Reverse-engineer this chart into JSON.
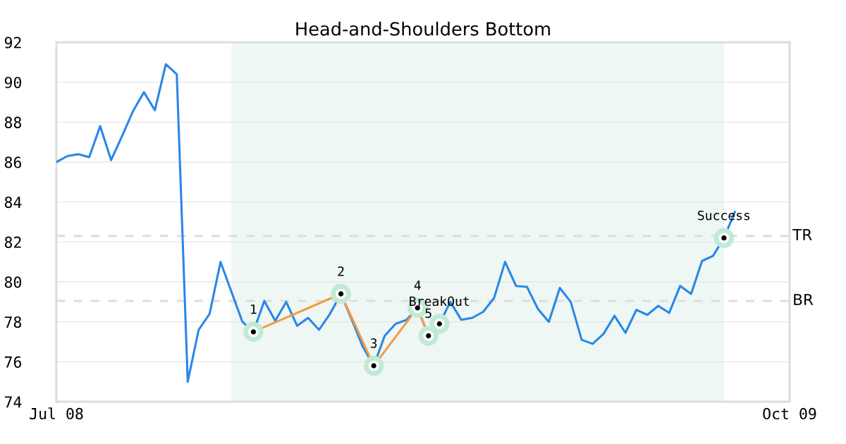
{
  "chart_data": {
    "type": "line",
    "title": "Head-and-Shoulders Bottom",
    "x": [
      "2008-07-07",
      "2008-07-14",
      "2008-07-21",
      "2008-07-28",
      "2008-08-04",
      "2008-08-11",
      "2008-08-18",
      "2008-08-25",
      "2008-09-01",
      "2008-09-08",
      "2008-09-15",
      "2008-09-22",
      "2008-09-29",
      "2008-10-06",
      "2008-10-13",
      "2008-10-20",
      "2008-10-27",
      "2008-11-03",
      "2008-11-10",
      "2008-11-17",
      "2008-11-24",
      "2008-12-01",
      "2008-12-08",
      "2008-12-15",
      "2008-12-22",
      "2008-12-29",
      "2009-01-05",
      "2009-01-12",
      "2009-01-19",
      "2009-01-26",
      "2009-02-02",
      "2009-02-09",
      "2009-02-16",
      "2009-02-23",
      "2009-03-02",
      "2009-03-09",
      "2009-03-16",
      "2009-03-23",
      "2009-03-30",
      "2009-04-06",
      "2009-04-13",
      "2009-04-20",
      "2009-04-27",
      "2009-05-04",
      "2009-05-11",
      "2009-05-18",
      "2009-05-25",
      "2009-06-01",
      "2009-06-08",
      "2009-06-15",
      "2009-06-22",
      "2009-06-29",
      "2009-07-06",
      "2009-07-13",
      "2009-07-20",
      "2009-07-27",
      "2009-08-03",
      "2009-08-10",
      "2009-08-17",
      "2009-08-24",
      "2009-08-31",
      "2009-09-07",
      "2009-09-14"
    ],
    "series": [
      {
        "color": "#2a86e8",
        "values": [
          86.0,
          86.3,
          86.4,
          86.25,
          87.8,
          86.1,
          87.3,
          88.55,
          89.5,
          88.6,
          90.9,
          90.4,
          75.0,
          77.6,
          78.4,
          81.0,
          79.5,
          78.0,
          77.5,
          79.05,
          78.05,
          79.0,
          77.8,
          78.2,
          77.6,
          78.4,
          79.4,
          78.1,
          76.75,
          75.8,
          77.3,
          77.9,
          78.1,
          78.7,
          77.3,
          77.9,
          79.0,
          78.1,
          78.2,
          78.5,
          79.2,
          81.0,
          79.8,
          79.75,
          78.65,
          78.0,
          79.7,
          79.0,
          77.1,
          76.9,
          77.4,
          78.3,
          77.45,
          78.6,
          78.35,
          78.8,
          78.45,
          79.8,
          79.4,
          81.05,
          81.3,
          82.2,
          83.5
        ]
      },
      {
        "type": "line",
        "color": "#f59b42",
        "marker": "circle",
        "x": [
          "2008-11-10",
          "2009-01-05",
          "2009-01-26",
          "2009-02-23",
          "2009-03-02"
        ],
        "values": [
          77.5,
          79.4,
          75.8,
          78.7,
          77.3
        ]
      },
      {
        "type": "scatter",
        "color": "#c0ead5",
        "marker": "circle",
        "x": [
          "2009-03-09",
          "2009-09-07"
        ],
        "values": [
          77.9,
          82.2
        ]
      }
    ],
    "xlim": [
      "2008-07-07",
      "2009-10-19"
    ],
    "xticks": [
      {
        "value": "2008-07-07",
        "label": "Jul 08"
      },
      {
        "value": "2009-10-19",
        "label": "Oct 09"
      }
    ],
    "ylim": [
      74,
      92
    ],
    "yticks": [
      74,
      76,
      78,
      80,
      82,
      84,
      86,
      88,
      90,
      92
    ],
    "grid": "y",
    "ref_lines": [
      {
        "axis": "y",
        "value": 82.3,
        "label": "TR",
        "color": "#dddddd",
        "line_style": "dashed"
      },
      {
        "axis": "y",
        "value": 79.05,
        "label": "BR",
        "color": "#dddddd",
        "line_style": "dashed"
      }
    ],
    "bands": [
      {
        "axis": "x",
        "from": "2008-10-27",
        "to": "2009-09-07",
        "color": "#eef7f3"
      }
    ],
    "annotations": [
      {
        "text": "1",
        "x": "2008-11-10",
        "y": 77.5
      },
      {
        "text": "2",
        "x": "2009-01-05",
        "y": 79.4
      },
      {
        "text": "3",
        "x": "2009-01-26",
        "y": 75.8
      },
      {
        "text": "4",
        "x": "2009-02-23",
        "y": 78.7
      },
      {
        "text": "5",
        "x": "2009-03-02",
        "y": 77.3
      },
      {
        "text": "BreakOut",
        "x": "2009-03-09",
        "y": 77.9
      },
      {
        "text": "Success",
        "x": "2009-09-07",
        "y": 82.2
      }
    ]
  }
}
